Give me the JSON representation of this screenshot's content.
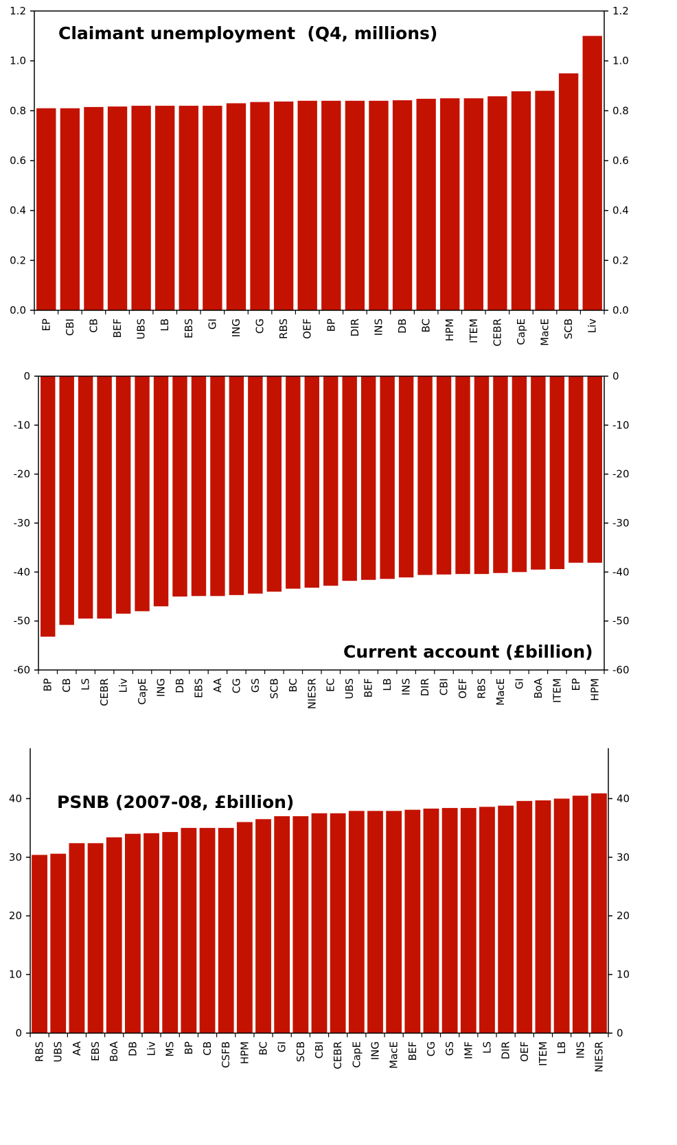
{
  "colors": {
    "bar": "#c41200",
    "axis": "#000000"
  },
  "chart_data": [
    {
      "type": "bar",
      "title": "Claimant unemployment  (Q4, millions)",
      "ylim": [
        0,
        1.2
      ],
      "yticks": [
        "0.0",
        "0.2",
        "0.4",
        "0.6",
        "0.8",
        "1.0",
        "1.2"
      ],
      "grid": false,
      "categories": [
        "EP",
        "CBI",
        "CB",
        "BEF",
        "UBS",
        "LB",
        "EBS",
        "GI",
        "ING",
        "CG",
        "RBS",
        "OEF",
        "BP",
        "DIR",
        "INS",
        "DB",
        "BC",
        "HPM",
        "ITEM",
        "CEBR",
        "CapE",
        "MacE",
        "SCB",
        "Liv"
      ],
      "values": [
        0.81,
        0.81,
        0.815,
        0.817,
        0.82,
        0.82,
        0.82,
        0.82,
        0.83,
        0.835,
        0.837,
        0.84,
        0.84,
        0.84,
        0.84,
        0.842,
        0.848,
        0.85,
        0.85,
        0.858,
        0.878,
        0.88,
        0.95,
        1.1
      ]
    },
    {
      "type": "bar",
      "title": "Current account (£billion)",
      "ylim": [
        -60,
        0
      ],
      "yticks": [
        "-60",
        "-50",
        "-40",
        "-30",
        "-20",
        "-10",
        "0"
      ],
      "grid": false,
      "categories": [
        "BP",
        "CB",
        "LS",
        "CEBR",
        "Liv",
        "CapE",
        "ING",
        "DB",
        "EBS",
        "AA",
        "CG",
        "GS",
        "SCB",
        "BC",
        "NIESR",
        "EC",
        "UBS",
        "BEF",
        "LB",
        "INS",
        "DIR",
        "CBI",
        "OEF",
        "RBS",
        "MacE",
        "GI",
        "BoA",
        "ITEM",
        "EP",
        "HPM"
      ],
      "values": [
        -53.2,
        -50.8,
        -49.5,
        -49.5,
        -48.5,
        -48.0,
        -47.0,
        -45.0,
        -44.9,
        -44.9,
        -44.7,
        -44.4,
        -44.0,
        -43.4,
        -43.2,
        -42.8,
        -41.8,
        -41.6,
        -41.4,
        -41.1,
        -40.6,
        -40.5,
        -40.4,
        -40.4,
        -40.2,
        -40.0,
        -39.5,
        -39.4,
        -38.1,
        -38.1
      ]
    },
    {
      "type": "bar",
      "title": "PSNB (2007-08, £billion)",
      "ylim": [
        0,
        50
      ],
      "yticks": [
        "0",
        "10",
        "20",
        "30",
        "40",
        "50"
      ],
      "grid": false,
      "categories": [
        "RBS",
        "UBS",
        "AA",
        "EBS",
        "BoA",
        "DB",
        "Liv",
        "MS",
        "BP",
        "CB",
        "CSFB",
        "HPM",
        "BC",
        "GI",
        "SCB",
        "CBI",
        "CEBR",
        "CapE",
        "ING",
        "MacE",
        "BEF",
        "CG",
        "GS",
        "IMF",
        "LS",
        "DIR",
        "OEF",
        "ITEM",
        "LB",
        "INS",
        "NIESR"
      ],
      "values": [
        30.4,
        30.6,
        32.4,
        32.4,
        33.4,
        34.0,
        34.1,
        34.3,
        35.0,
        35.0,
        35.0,
        36.0,
        36.5,
        37.0,
        37.0,
        37.5,
        37.5,
        37.9,
        37.9,
        37.9,
        38.1,
        38.3,
        38.4,
        38.4,
        38.6,
        38.8,
        39.6,
        39.7,
        40.0,
        40.5,
        40.9
      ]
    }
  ]
}
